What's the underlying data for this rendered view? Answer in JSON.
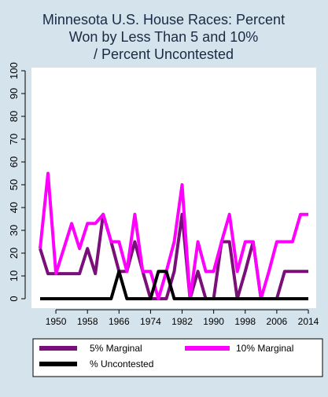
{
  "chart_data": {
    "type": "line",
    "title_lines": [
      "Minnesota U.S. House Races: Percent",
      "Won by Less Than 5 and 10%",
      "/ Percent Uncontested"
    ],
    "xlabel": "",
    "ylabel": "",
    "xlim": [
      1946,
      2014
    ],
    "ylim": [
      0,
      100
    ],
    "x_ticks": [
      1950,
      1958,
      1966,
      1974,
      1982,
      1990,
      1998,
      2006,
      2014
    ],
    "y_ticks": [
      0,
      10,
      20,
      30,
      40,
      50,
      60,
      70,
      80,
      90,
      100
    ],
    "grid": false,
    "legend_placement": "bottom",
    "x": [
      1946,
      1948,
      1950,
      1952,
      1954,
      1956,
      1958,
      1960,
      1962,
      1964,
      1966,
      1968,
      1970,
      1972,
      1974,
      1976,
      1978,
      1980,
      1982,
      1984,
      1986,
      1988,
      1990,
      1992,
      1994,
      1996,
      1998,
      2000,
      2002,
      2004,
      2006,
      2008,
      2010,
      2012,
      2014
    ],
    "series": [
      {
        "name": "5% Marginal",
        "color": "#7a0f7a",
        "values": [
          22,
          11,
          11,
          11,
          11,
          11,
          22,
          11,
          37,
          25,
          12,
          12,
          25,
          12,
          0,
          0,
          0,
          12,
          37,
          0,
          12,
          0,
          0,
          25,
          25,
          0,
          12,
          25,
          0,
          0,
          0,
          12,
          12,
          12,
          12
        ]
      },
      {
        "name": "10% Marginal",
        "color": "#ff00ff",
        "values": [
          22,
          55,
          11,
          22,
          33,
          22,
          33,
          33,
          37,
          25,
          25,
          12,
          37,
          12,
          12,
          0,
          12,
          25,
          50,
          0,
          25,
          12,
          12,
          25,
          37,
          12,
          25,
          25,
          0,
          12,
          25,
          25,
          25,
          37,
          37
        ]
      },
      {
        "name": "% Uncontested",
        "color": "#000000",
        "values": [
          0,
          0,
          0,
          0,
          0,
          0,
          0,
          0,
          0,
          0,
          12,
          0,
          0,
          0,
          0,
          12,
          12,
          0,
          0,
          0,
          0,
          0,
          0,
          0,
          0,
          0,
          0,
          0,
          0,
          0,
          0,
          0,
          0,
          0,
          0
        ]
      }
    ]
  }
}
